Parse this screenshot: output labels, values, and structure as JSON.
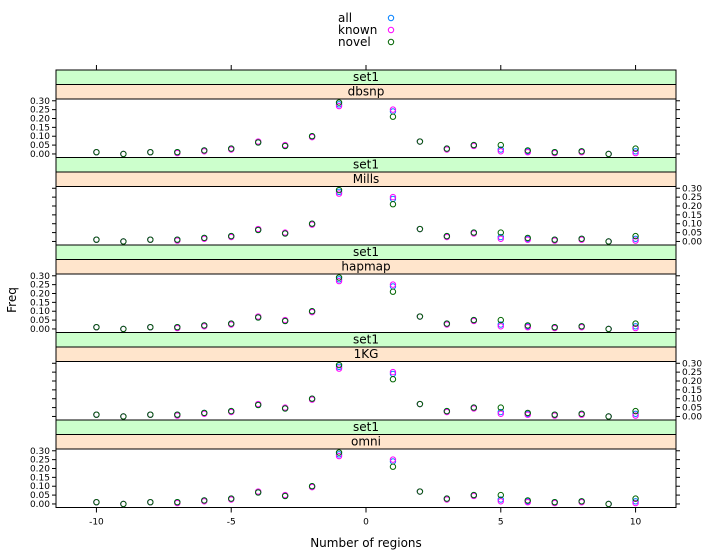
{
  "chart_data": {
    "type": "scatter",
    "xlabel": "Number of regions",
    "ylabel": "Freq",
    "xlim": [
      -11.5,
      11.5
    ],
    "ylim": [
      -0.02,
      0.31
    ],
    "x_ticks": [
      -10,
      -5,
      0,
      5,
      10
    ],
    "y_ticks": [
      0.0,
      0.05,
      0.1,
      0.15,
      0.2,
      0.25,
      0.3
    ],
    "x_tick_labels": [
      "-10",
      "-5",
      "0",
      "5",
      "10"
    ],
    "y_tick_labels": [
      "0.00",
      "0.05",
      "0.10",
      "0.15",
      "0.20",
      "0.25",
      "0.30"
    ],
    "legend": {
      "placement": "top",
      "entries": [
        {
          "label": "all",
          "color": "#0080ff"
        },
        {
          "label": "known",
          "color": "#ff00ff"
        },
        {
          "label": "novel",
          "color": "#006400"
        }
      ]
    },
    "strip_colors": {
      "outer": "#ccffcc",
      "inner": "#ffe5cc"
    },
    "panels": [
      {
        "set": "set1",
        "name": "dbsnp"
      },
      {
        "set": "set1",
        "name": "Mills"
      },
      {
        "set": "set1",
        "name": "hapmap"
      },
      {
        "set": "set1",
        "name": "1KG"
      },
      {
        "set": "set1",
        "name": "omni"
      }
    ],
    "x": [
      -10,
      -9,
      -8,
      -7,
      -6,
      -5,
      -4,
      -3,
      -2,
      -1,
      1,
      2,
      3,
      4,
      5,
      6,
      7,
      8,
      9,
      10
    ],
    "series": [
      {
        "name": "all",
        "color": "#0080ff",
        "values": [
          0.01,
          0.0,
          0.01,
          0.01,
          0.02,
          0.03,
          0.065,
          0.045,
          0.1,
          0.28,
          0.24,
          0.07,
          0.03,
          0.05,
          0.025,
          0.015,
          0.01,
          0.015,
          0.0,
          0.015
        ]
      },
      {
        "name": "known",
        "color": "#ff00ff",
        "values": [
          0.01,
          0.0,
          0.01,
          0.005,
          0.015,
          0.025,
          0.07,
          0.05,
          0.095,
          0.27,
          0.25,
          0.07,
          0.025,
          0.045,
          0.015,
          0.01,
          0.005,
          0.01,
          0.0,
          0.005
        ]
      },
      {
        "name": "novel",
        "color": "#006400",
        "values": [
          0.01,
          0.0,
          0.01,
          0.01,
          0.02,
          0.03,
          0.065,
          0.045,
          0.1,
          0.29,
          0.21,
          0.07,
          0.03,
          0.05,
          0.05,
          0.02,
          0.01,
          0.015,
          0.0,
          0.03
        ]
      }
    ]
  }
}
